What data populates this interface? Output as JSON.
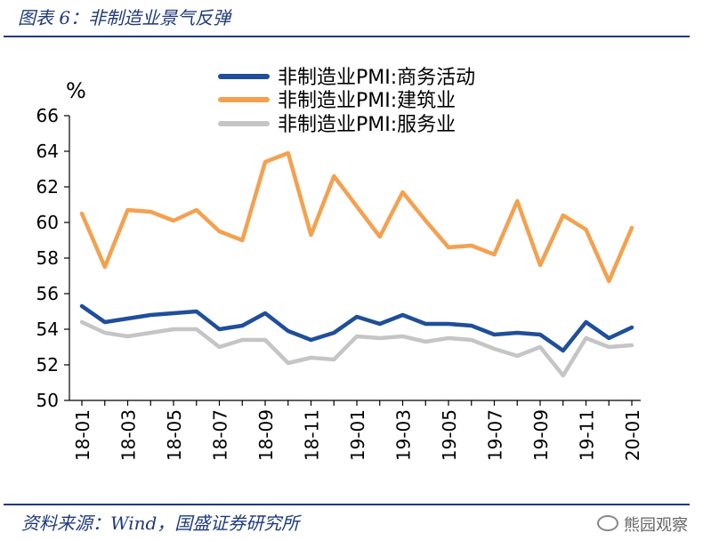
{
  "header": {
    "title": "图表 6：非制造业景气反弹"
  },
  "footer": {
    "source": "资料来源：Wind，国盛证券研究所",
    "watermark": "熊园观察"
  },
  "chart_data": {
    "type": "line",
    "unit": "%",
    "ylim": [
      50,
      66
    ],
    "yticks": [
      50,
      52,
      54,
      56,
      58,
      60,
      62,
      64,
      66
    ],
    "x": [
      "18-01",
      "18-02",
      "18-03",
      "18-04",
      "18-05",
      "18-06",
      "18-07",
      "18-08",
      "18-09",
      "18-10",
      "18-11",
      "18-12",
      "19-01",
      "19-02",
      "19-03",
      "19-04",
      "19-05",
      "19-06",
      "19-07",
      "19-08",
      "19-09",
      "19-10",
      "19-11",
      "19-12",
      "20-01"
    ],
    "xtick_labels": [
      "18-01",
      "18-03",
      "18-05",
      "18-07",
      "18-09",
      "18-11",
      "19-01",
      "19-03",
      "19-05",
      "19-07",
      "19-09",
      "19-11",
      "20-01"
    ],
    "legend_position": "top",
    "series": [
      {
        "name": "非制造业PMI:商务活动",
        "color": "#1f4e9b",
        "values": [
          55.3,
          54.4,
          54.6,
          54.8,
          54.9,
          55.0,
          54.0,
          54.2,
          54.9,
          53.9,
          53.4,
          53.8,
          54.7,
          54.3,
          54.8,
          54.3,
          54.3,
          54.2,
          53.7,
          53.8,
          53.7,
          52.8,
          54.4,
          53.5,
          54.1
        ]
      },
      {
        "name": "非制造业PMI:建筑业",
        "color": "#f4a14f",
        "values": [
          60.5,
          57.5,
          60.7,
          60.6,
          60.1,
          60.7,
          59.5,
          59.0,
          63.4,
          63.9,
          59.3,
          62.6,
          60.9,
          59.2,
          61.7,
          60.1,
          58.6,
          58.7,
          58.2,
          61.2,
          57.6,
          60.4,
          59.6,
          56.7,
          59.7
        ]
      },
      {
        "name": "非制造业PMI:服务业",
        "color": "#c5c5c5",
        "values": [
          54.4,
          53.8,
          53.6,
          53.8,
          54.0,
          54.0,
          53.0,
          53.4,
          53.4,
          52.1,
          52.4,
          52.3,
          53.6,
          53.5,
          53.6,
          53.3,
          53.5,
          53.4,
          52.9,
          52.5,
          53.0,
          51.4,
          53.5,
          53.0,
          53.1
        ]
      }
    ]
  }
}
